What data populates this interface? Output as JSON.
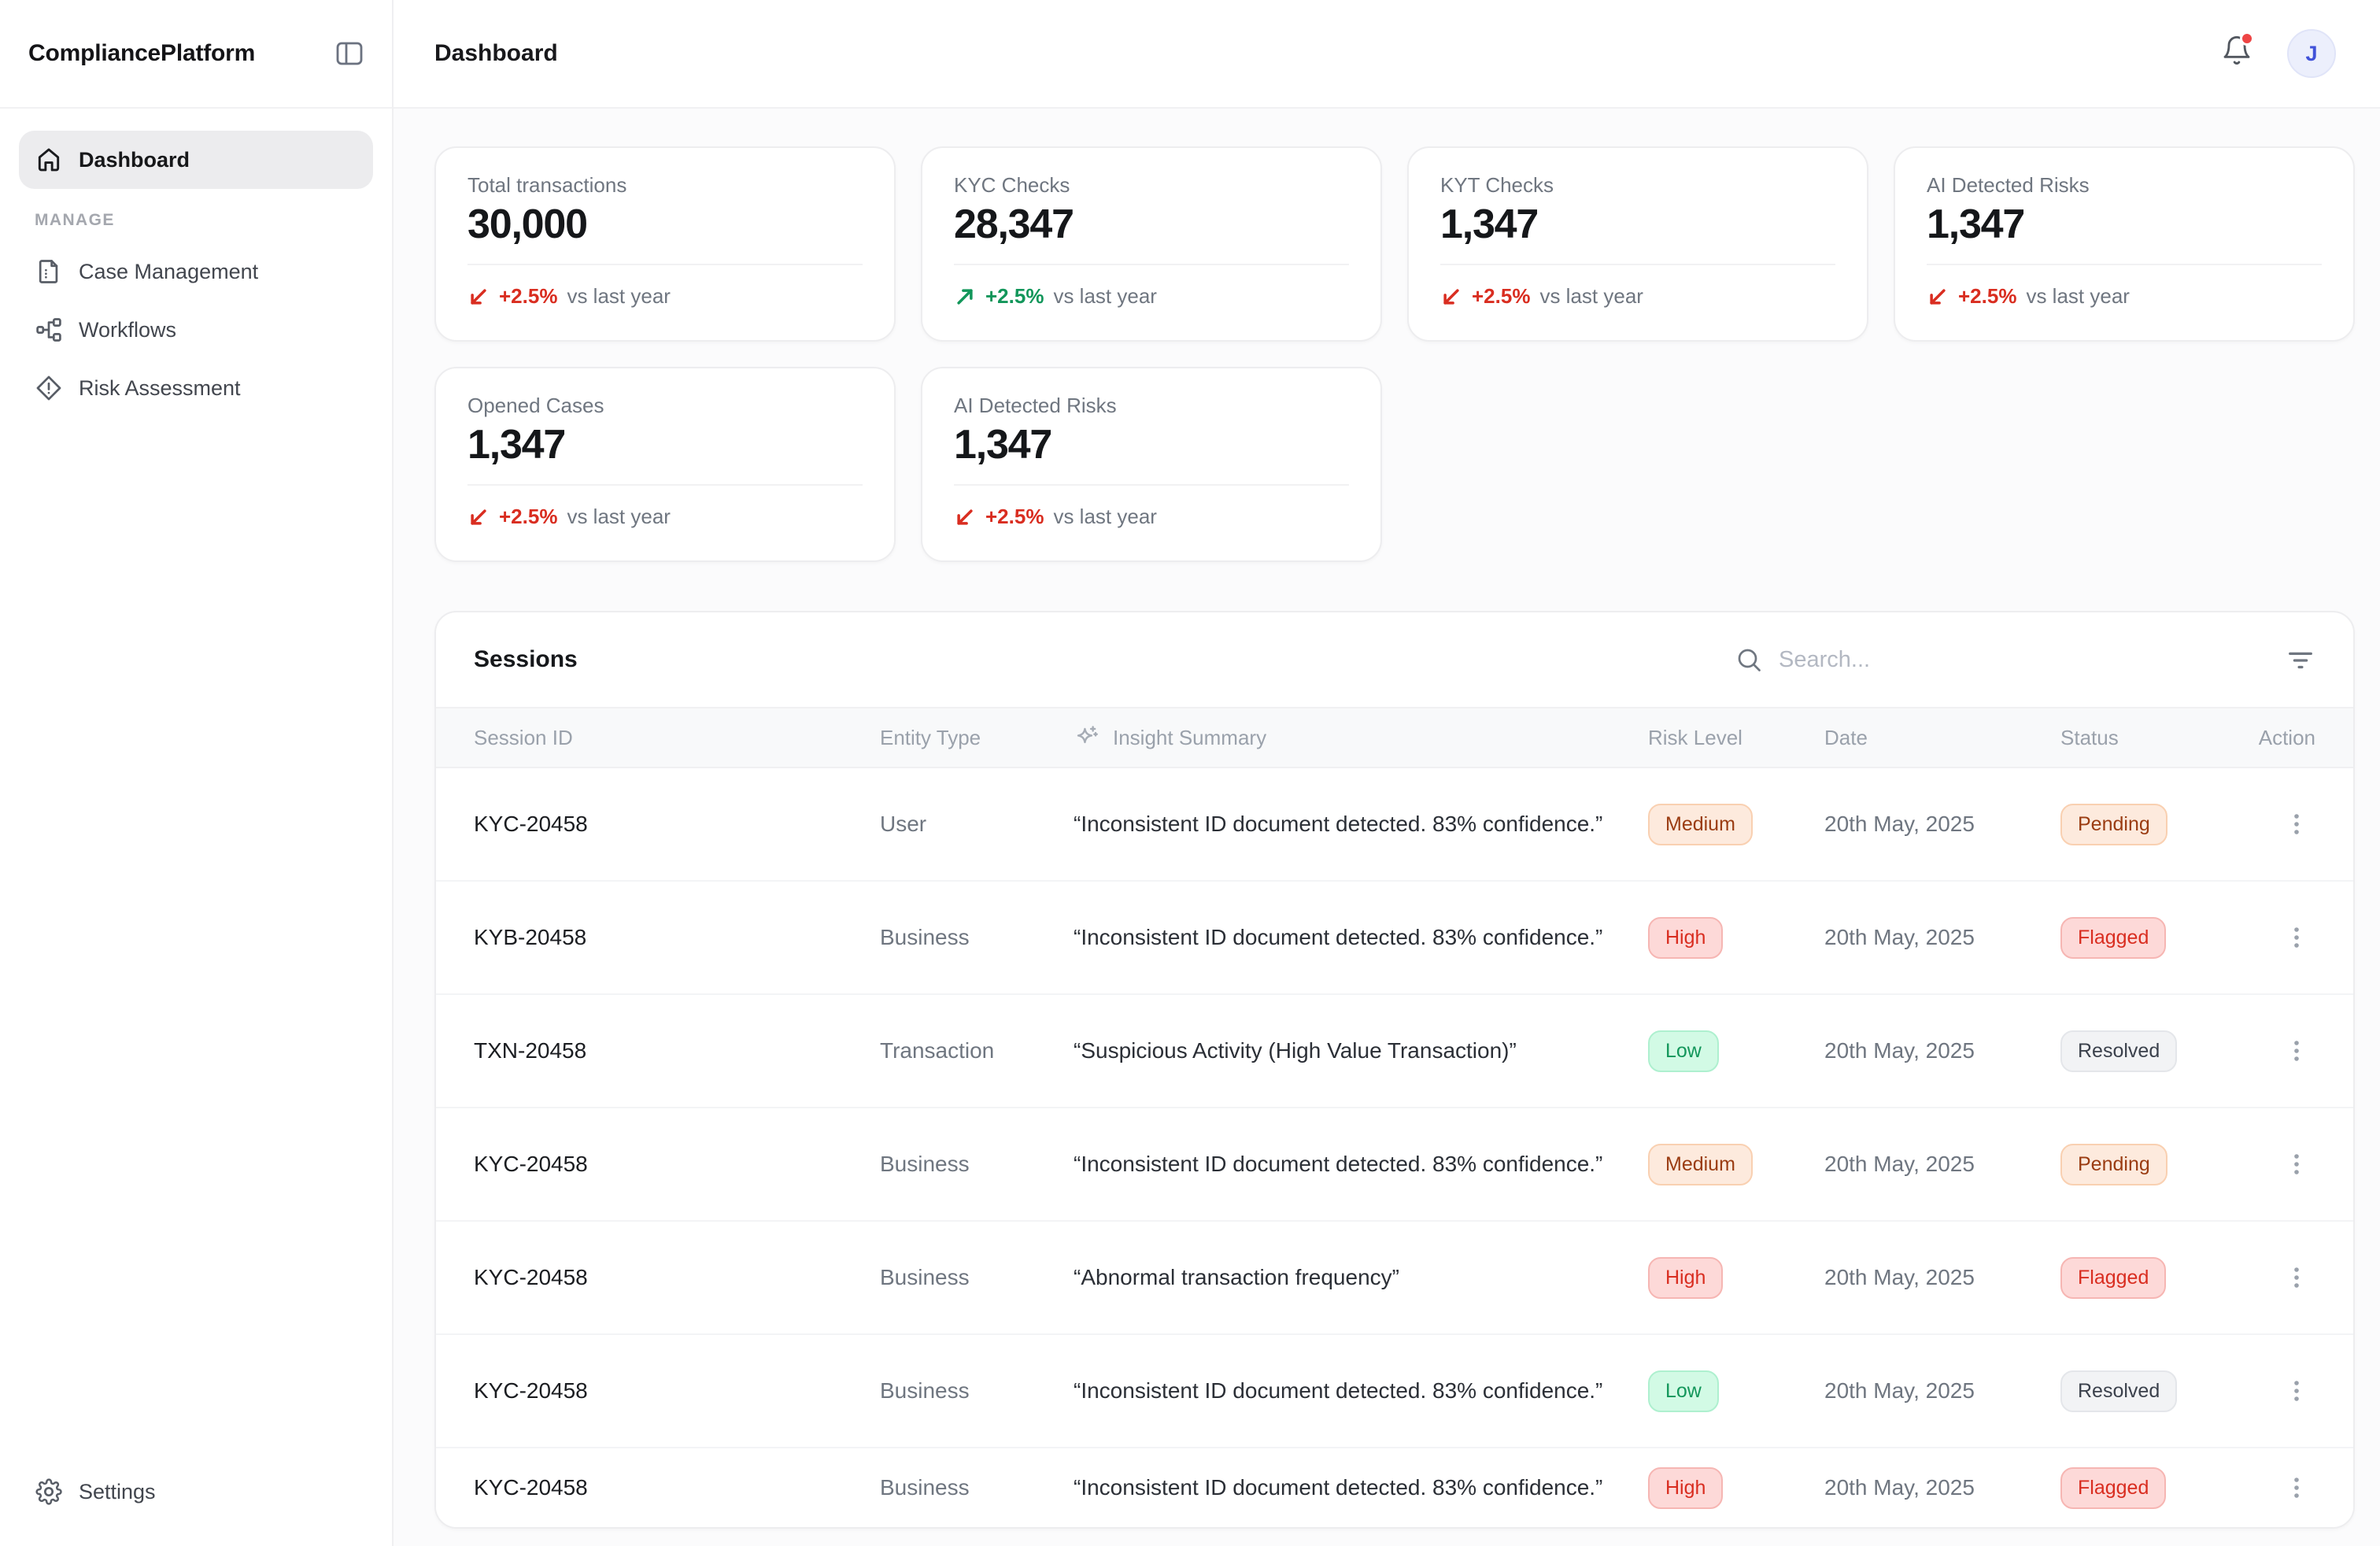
{
  "app": {
    "name": "CompliancePlatform"
  },
  "header": {
    "title": "Dashboard",
    "avatar_initial": "J",
    "notification_badge": true
  },
  "sidebar": {
    "primary_items": [
      {
        "label": "Dashboard",
        "icon": "home-icon",
        "active": true
      }
    ],
    "section_label": "MANAGE",
    "manage_items": [
      {
        "label": "Case Management",
        "icon": "case-document-icon"
      },
      {
        "label": "Workflows",
        "icon": "workflow-icon"
      },
      {
        "label": "Risk Assessment",
        "icon": "risk-diamond-icon"
      }
    ],
    "footer_item": {
      "label": "Settings",
      "icon": "gear-icon"
    }
  },
  "stats": {
    "change_suffix": "vs last year",
    "cards": [
      {
        "label": "Total transactions",
        "value": "30,000",
        "change": "+2.5%",
        "direction": "down",
        "tone": "red"
      },
      {
        "label": "KYC Checks",
        "value": "28,347",
        "change": "+2.5%",
        "direction": "up",
        "tone": "green"
      },
      {
        "label": "KYT Checks",
        "value": "1,347",
        "change": "+2.5%",
        "direction": "down",
        "tone": "red"
      },
      {
        "label": "AI Detected Risks",
        "value": "1,347",
        "change": "+2.5%",
        "direction": "down",
        "tone": "red"
      },
      {
        "label": "Opened Cases",
        "value": "1,347",
        "change": "+2.5%",
        "direction": "down",
        "tone": "red"
      },
      {
        "label": "AI Detected Risks",
        "value": "1,347",
        "change": "+2.5%",
        "direction": "down",
        "tone": "red"
      }
    ]
  },
  "sessions": {
    "title": "Sessions",
    "search_placeholder": "Search...",
    "columns": [
      "Session ID",
      "Entity Type",
      "Insight Summary",
      "Risk Level",
      "Date",
      "Status",
      "Action"
    ],
    "rows": [
      {
        "session_id": "KYC-20458",
        "entity_type": "User",
        "insight": "“Inconsistent ID document detected. 83% confidence.”",
        "risk": {
          "label": "Medium",
          "tone": "orange"
        },
        "date": "20th May, 2025",
        "status": {
          "label": "Pending",
          "tone": "orange"
        }
      },
      {
        "session_id": "KYB-20458",
        "entity_type": "Business",
        "insight": "“Inconsistent ID document detected. 83% confidence.”",
        "risk": {
          "label": "High",
          "tone": "red"
        },
        "date": "20th May, 2025",
        "status": {
          "label": "Flagged",
          "tone": "red"
        }
      },
      {
        "session_id": "TXN-20458",
        "entity_type": "Transaction",
        "insight": "“Suspicious Activity (High Value Transaction)”",
        "risk": {
          "label": "Low",
          "tone": "green"
        },
        "date": "20th May, 2025",
        "status": {
          "label": "Resolved",
          "tone": "gray"
        }
      },
      {
        "session_id": "KYC-20458",
        "entity_type": "Business",
        "insight": "“Inconsistent ID document detected. 83% confidence.”",
        "risk": {
          "label": "Medium",
          "tone": "orange"
        },
        "date": "20th May, 2025",
        "status": {
          "label": "Pending",
          "tone": "orange"
        }
      },
      {
        "session_id": "KYC-20458",
        "entity_type": "Business",
        "insight": "“Abnormal transaction frequency”",
        "risk": {
          "label": "High",
          "tone": "red"
        },
        "date": "20th May, 2025",
        "status": {
          "label": "Flagged",
          "tone": "red"
        }
      },
      {
        "session_id": "KYC-20458",
        "entity_type": "Business",
        "insight": "“Inconsistent ID document detected. 83% confidence.”",
        "risk": {
          "label": "Low",
          "tone": "green"
        },
        "date": "20th May, 2025",
        "status": {
          "label": "Resolved",
          "tone": "gray"
        }
      },
      {
        "session_id": "KYC-20458",
        "entity_type": "Business",
        "insight": "“Inconsistent ID document detected. 83% confidence.”",
        "risk": {
          "label": "High",
          "tone": "red"
        },
        "date": "20th May, 2025",
        "status": {
          "label": "Flagged",
          "tone": "red"
        }
      }
    ]
  },
  "colors": {
    "trend_negative": "#d92d20",
    "trend_positive": "#12965a",
    "badge_orange_bg": "#fdeadd",
    "badge_orange_text": "#9a3c12",
    "badge_red_bg": "#fdd9d8",
    "badge_red_text": "#d92d20",
    "badge_green_bg": "#d2fae5",
    "badge_green_text": "#12965a",
    "badge_gray_bg": "#f2f3f5",
    "badge_gray_text": "#3b414c",
    "notification_dot": "#ee4444",
    "avatar_bg": "#eceffc",
    "avatar_text": "#4152d9"
  }
}
